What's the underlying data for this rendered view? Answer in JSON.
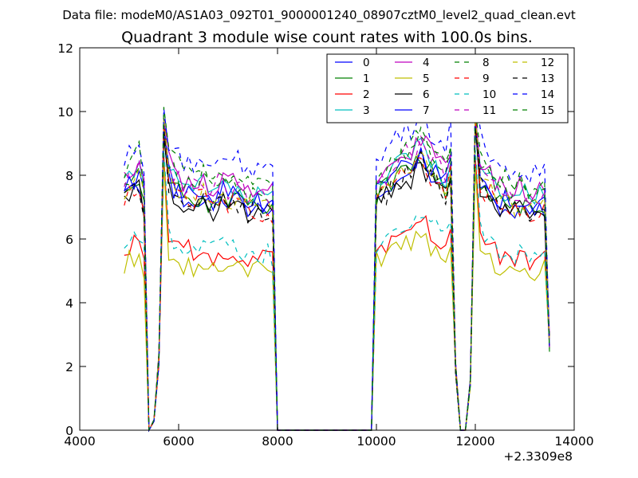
{
  "suptitle": "Data file: modeM0/AS1A03_092T01_9000001240_08907cztM0_level2_quad_clean.evt",
  "chart_data": {
    "type": "line",
    "title": "Quadrant 3 module wise count rates with 100.0s bins.",
    "xlabel": "",
    "ylabel": "",
    "xlim": [
      4000,
      14000
    ],
    "ylim": [
      0,
      12
    ],
    "x_offset_label": "+2.3309e8",
    "xticks": [
      4000,
      6000,
      8000,
      10000,
      12000,
      14000
    ],
    "xtick_labels": [
      "4000",
      "6000",
      "8000",
      "10000",
      "12000",
      "14000"
    ],
    "yticks": [
      0,
      2,
      4,
      6,
      8,
      10,
      12
    ],
    "ytick_labels": [
      "0",
      "2",
      "4",
      "6",
      "8",
      "10",
      "12"
    ],
    "legend_position": "top-right",
    "legend_columns": 4,
    "x": [
      4900,
      5000,
      5100,
      5200,
      5300,
      5400,
      5500,
      5600,
      5700,
      5800,
      5900,
      6000,
      6100,
      6200,
      6300,
      6400,
      6500,
      6600,
      6700,
      6800,
      6900,
      7000,
      7100,
      7200,
      7300,
      7400,
      7500,
      7600,
      7700,
      7800,
      7900,
      8000,
      8100,
      8200,
      8300,
      8400,
      8500,
      8600,
      8700,
      8800,
      8900,
      9000,
      9100,
      9200,
      9300,
      9400,
      9500,
      9600,
      9700,
      9800,
      9900,
      10000,
      10100,
      10200,
      10300,
      10400,
      10500,
      10600,
      10700,
      10800,
      10900,
      11000,
      11100,
      11200,
      11300,
      11400,
      11500,
      11600,
      11700,
      11800,
      11900,
      12000,
      12100,
      12200,
      12300,
      12400,
      12500,
      12600,
      12700,
      12800,
      12900,
      13000,
      13100,
      13200,
      13300,
      13400,
      13500
    ],
    "series": [
      {
        "name": "0",
        "color": "#0000ff",
        "dash": "solid",
        "scale": 1.0,
        "seed": 1
      },
      {
        "name": "1",
        "color": "#008000",
        "dash": "solid",
        "scale": 1.01,
        "seed": 2
      },
      {
        "name": "2",
        "color": "#ff0000",
        "dash": "solid",
        "scale": 0.78,
        "seed": 3
      },
      {
        "name": "3",
        "color": "#00bfbf",
        "dash": "solid",
        "scale": 1.06,
        "seed": 4
      },
      {
        "name": "4",
        "color": "#bf00bf",
        "dash": "solid",
        "scale": 1.09,
        "seed": 5
      },
      {
        "name": "5",
        "color": "#bfbf00",
        "dash": "solid",
        "scale": 0.72,
        "seed": 6
      },
      {
        "name": "6",
        "color": "#000000",
        "dash": "solid",
        "scale": 0.98,
        "seed": 7
      },
      {
        "name": "7",
        "color": "#0000ff",
        "dash": "solid",
        "scale": 1.03,
        "seed": 8
      },
      {
        "name": "8",
        "color": "#008000",
        "dash": "dashed",
        "scale": 1.08,
        "seed": 9
      },
      {
        "name": "9",
        "color": "#ff0000",
        "dash": "dashed",
        "scale": 1.0,
        "seed": 10
      },
      {
        "name": "10",
        "color": "#00bfbf",
        "dash": "dashed",
        "scale": 0.8,
        "seed": 11
      },
      {
        "name": "11",
        "color": "#bf00bf",
        "dash": "dashed",
        "scale": 1.07,
        "seed": 12
      },
      {
        "name": "12",
        "color": "#bfbf00",
        "dash": "dashed",
        "scale": 1.02,
        "seed": 13
      },
      {
        "name": "13",
        "color": "#000000",
        "dash": "dashed",
        "scale": 0.99,
        "seed": 14
      },
      {
        "name": "14",
        "color": "#0000ff",
        "dash": "dashed",
        "scale": 1.17,
        "seed": 15
      },
      {
        "name": "15",
        "color": "#008000",
        "dash": "dashed",
        "scale": 1.12,
        "seed": 16
      }
    ],
    "base_profile": [
      7.3,
      7.4,
      7.6,
      7.8,
      7.0,
      0.0,
      0.3,
      2.2,
      8.6,
      7.8,
      7.5,
      7.4,
      7.2,
      7.3,
      7.1,
      7.2,
      7.4,
      7.1,
      7.0,
      7.2,
      7.3,
      7.0,
      7.1,
      7.2,
      7.0,
      6.9,
      7.0,
      6.9,
      6.8,
      6.9,
      6.8,
      0.0,
      0.0,
      0.0,
      0.0,
      0.0,
      0.0,
      0.0,
      0.0,
      0.0,
      0.0,
      0.0,
      0.0,
      0.0,
      0.0,
      0.0,
      0.0,
      0.0,
      0.0,
      0.0,
      0.0,
      7.3,
      7.4,
      7.5,
      7.6,
      7.8,
      7.9,
      8.1,
      8.0,
      8.3,
      8.5,
      8.2,
      8.0,
      7.9,
      7.6,
      7.5,
      8.1,
      2.0,
      0.0,
      0.0,
      1.5,
      8.3,
      7.8,
      7.5,
      7.4,
      7.2,
      7.0,
      7.1,
      6.9,
      6.9,
      7.0,
      7.0,
      6.8,
      6.9,
      6.9,
      7.0,
      2.7
    ]
  }
}
